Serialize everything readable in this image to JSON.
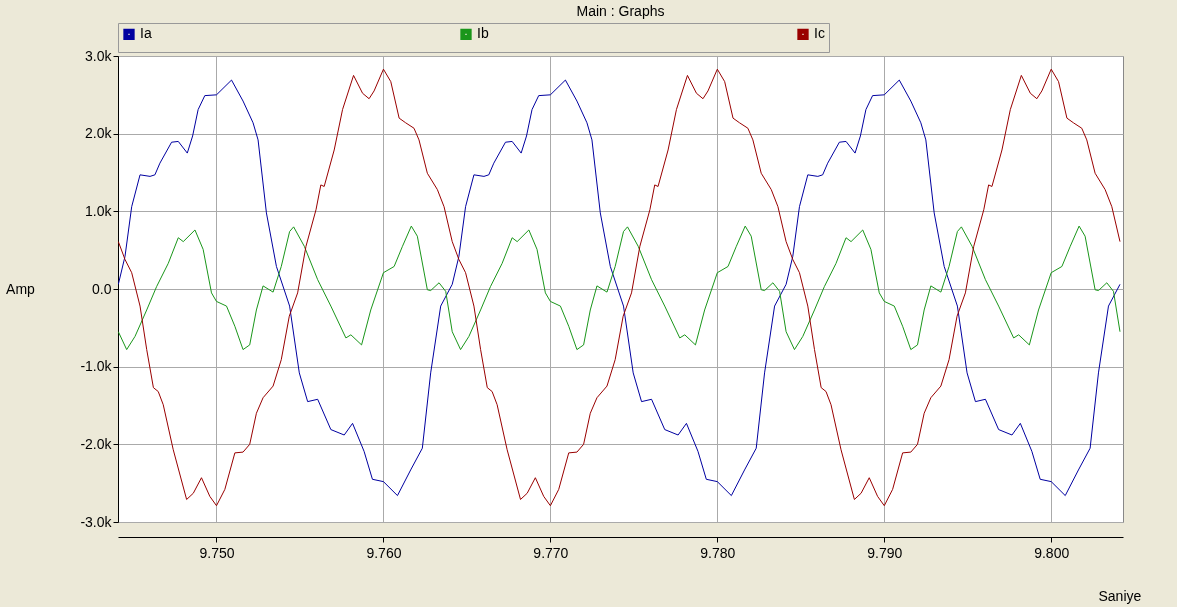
{
  "chart_data": {
    "type": "line",
    "title": "Main : Graphs",
    "xlabel": "Saniye",
    "ylabel": "Amp",
    "legend": "top",
    "grid": true,
    "xlim": [
      9.7441,
      9.8043
    ],
    "xticks": [
      {
        "value": 9.75,
        "label": "9.750"
      },
      {
        "value": 9.76,
        "label": "9.760"
      },
      {
        "value": 9.77,
        "label": "9.770"
      },
      {
        "value": 9.78,
        "label": "9.780"
      },
      {
        "value": 9.79,
        "label": "9.790"
      },
      {
        "value": 9.8,
        "label": "9.800"
      }
    ],
    "ylim": [
      -3000,
      3000
    ],
    "yticks": [
      {
        "value": -3000,
        "label": "-3.0k"
      },
      {
        "value": -2000,
        "label": "-2.0k"
      },
      {
        "value": -1000,
        "label": "-1.0k"
      },
      {
        "value": 0,
        "label": "0.0"
      },
      {
        "value": 1000,
        "label": "1.0k"
      },
      {
        "value": 2000,
        "label": "2.0k"
      },
      {
        "value": 3000,
        "label": "3.0k"
      }
    ],
    "series": [
      {
        "name": "Ia",
        "color": "#0000a0",
        "x": [
          9.74412,
          9.74452,
          9.74492,
          9.74542,
          9.74602,
          9.74631,
          9.74661,
          9.74731,
          9.74771,
          9.74825,
          9.74857,
          9.7489,
          9.7493,
          9.75,
          9.7509,
          9.75159,
          9.75219,
          9.75249,
          9.75299,
          9.75359,
          9.75438,
          9.75496,
          9.75546,
          9.75606,
          9.75685,
          9.75765,
          9.75815,
          9.75884,
          9.75934,
          9.76,
          9.76084,
          9.76163,
          9.76233,
          9.76283,
          9.76343,
          9.76412,
          9.76452,
          9.76492,
          9.76542,
          9.76602,
          9.76631,
          9.76661,
          9.76731,
          9.76771,
          9.76825,
          9.76857,
          9.7689,
          9.7693,
          9.77,
          9.7709,
          9.77159,
          9.77219,
          9.77249,
          9.77299,
          9.77359,
          9.77438,
          9.77496,
          9.77546,
          9.77606,
          9.77685,
          9.77765,
          9.77815,
          9.77884,
          9.77934,
          9.78,
          9.78084,
          9.78163,
          9.78233,
          9.78283,
          9.78343,
          9.78412,
          9.78452,
          9.78492,
          9.78542,
          9.78602,
          9.78631,
          9.78661,
          9.78731,
          9.78771,
          9.78825,
          9.78857,
          9.7889,
          9.7893,
          9.79,
          9.7909,
          9.79159,
          9.79219,
          9.79249,
          9.79299,
          9.79359,
          9.79438,
          9.79496,
          9.79546,
          9.79606,
          9.79685,
          9.79765,
          9.79815,
          9.79884,
          9.79934,
          9.8,
          9.80084,
          9.80163,
          9.80233,
          9.80283,
          9.80343,
          9.80412
        ],
        "values": [
          60,
          420,
          1060,
          1470,
          1450,
          1470,
          1620,
          1890,
          1900,
          1750,
          1970,
          2310,
          2490,
          2500,
          2690,
          2420,
          2140,
          1920,
          980,
          290,
          -220,
          -1080,
          -1450,
          -1420,
          -1810,
          -1880,
          -1730,
          -2090,
          -2450,
          -2480,
          -2660,
          -2330,
          -2050,
          -1080,
          -220,
          60,
          420,
          1060,
          1470,
          1450,
          1470,
          1620,
          1890,
          1900,
          1750,
          1970,
          2310,
          2490,
          2500,
          2690,
          2420,
          2140,
          1920,
          980,
          290,
          -220,
          -1080,
          -1450,
          -1420,
          -1810,
          -1880,
          -1730,
          -2090,
          -2450,
          -2480,
          -2660,
          -2330,
          -2050,
          -1080,
          -220,
          60,
          420,
          1060,
          1470,
          1450,
          1470,
          1620,
          1890,
          1900,
          1750,
          1970,
          2310,
          2490,
          2500,
          2690,
          2420,
          2140,
          1920,
          980,
          290,
          -220,
          -1080,
          -1450,
          -1420,
          -1810,
          -1880,
          -1730,
          -2090,
          -2450,
          -2480,
          -2660,
          -2330,
          -2050,
          -1080,
          -220,
          60
        ]
      },
      {
        "name": "Ib",
        "color": "#1a961a",
        "x": [
          9.74412,
          9.74462,
          9.74512,
          9.74582,
          9.74641,
          9.74711,
          9.74771,
          9.74801,
          9.74871,
          9.7492,
          9.7497,
          9.75,
          9.7506,
          9.7511,
          9.75159,
          9.75199,
          9.75239,
          9.75279,
          9.75339,
          9.75388,
          9.75438,
          9.75462,
          9.75526,
          9.75606,
          9.75685,
          9.75775,
          9.75805,
          9.75869,
          9.75924,
          9.76,
          9.76064,
          9.76114,
          9.76167,
          9.76203,
          9.76263,
          9.76283,
          9.76333,
          9.76373,
          9.76412,
          9.76462,
          9.76512,
          9.76582,
          9.76641,
          9.76711,
          9.76771,
          9.76801,
          9.76871,
          9.7692,
          9.7697,
          9.77,
          9.7706,
          9.7711,
          9.77159,
          9.77199,
          9.77239,
          9.77279,
          9.77339,
          9.77388,
          9.77438,
          9.77462,
          9.77526,
          9.77606,
          9.77685,
          9.77775,
          9.77805,
          9.77869,
          9.77924,
          9.78,
          9.78064,
          9.78114,
          9.78167,
          9.78203,
          9.78263,
          9.78283,
          9.78333,
          9.78373,
          9.78412,
          9.78462,
          9.78512,
          9.78582,
          9.78641,
          9.78711,
          9.78771,
          9.78801,
          9.78871,
          9.7892,
          9.7897,
          9.79,
          9.7906,
          9.7911,
          9.79159,
          9.79199,
          9.79239,
          9.79279,
          9.79339,
          9.79388,
          9.79438,
          9.79462,
          9.79526,
          9.79606,
          9.79685,
          9.79775,
          9.79805,
          9.79869,
          9.79924,
          9.8,
          9.80064,
          9.80114,
          9.80167,
          9.80203,
          9.80263,
          9.80283,
          9.80333,
          9.80373,
          9.80412
        ],
        "values": [
          -550,
          -780,
          -610,
          -270,
          30,
          330,
          660,
          610,
          760,
          510,
          -50,
          -160,
          -220,
          -480,
          -780,
          -720,
          -270,
          40,
          -40,
          290,
          740,
          800,
          550,
          120,
          -220,
          -630,
          -590,
          -720,
          -270,
          210,
          290,
          550,
          810,
          680,
          -10,
          -20,
          80,
          -30,
          -550,
          -780,
          -610,
          -270,
          30,
          330,
          660,
          610,
          760,
          510,
          -50,
          -160,
          -220,
          -480,
          -780,
          -720,
          -270,
          40,
          -40,
          290,
          740,
          800,
          550,
          120,
          -220,
          -630,
          -590,
          -720,
          -270,
          210,
          290,
          550,
          810,
          680,
          -10,
          -20,
          80,
          -30,
          -550,
          -780,
          -610,
          -270,
          30,
          330,
          660,
          610,
          760,
          510,
          -50,
          -160,
          -220,
          -480,
          -780,
          -720,
          -270,
          40,
          -40,
          290,
          740,
          800,
          550,
          120,
          -220,
          -630,
          -590,
          -720,
          -270,
          210,
          290,
          550,
          810,
          680,
          -10,
          -20,
          80,
          -30,
          -550
        ]
      },
      {
        "name": "Ic",
        "color": "#990000",
        "x": [
          9.74412,
          9.74452,
          9.74492,
          9.74542,
          9.74582,
          9.74622,
          9.74651,
          9.74681,
          9.74741,
          9.74821,
          9.74861,
          9.7491,
          9.7496,
          9.75,
          9.7505,
          9.7511,
          9.75159,
          9.75199,
          9.75239,
          9.75279,
          9.75339,
          9.75388,
          9.75436,
          9.75486,
          9.75536,
          9.75596,
          9.75625,
          9.75645,
          9.75705,
          9.75755,
          9.75821,
          9.75875,
          9.75914,
          9.75944,
          9.76,
          9.76044,
          9.76094,
          9.76133,
          9.76183,
          9.76213,
          9.76263,
          9.76323,
          9.76363,
          9.76412,
          9.76452,
          9.76492,
          9.76542,
          9.76582,
          9.76622,
          9.76651,
          9.76681,
          9.76741,
          9.76821,
          9.76861,
          9.7691,
          9.7696,
          9.77,
          9.7705,
          9.7711,
          9.77159,
          9.77199,
          9.77239,
          9.77279,
          9.77339,
          9.77388,
          9.77436,
          9.77486,
          9.77536,
          9.77596,
          9.77625,
          9.77645,
          9.77705,
          9.77755,
          9.77821,
          9.77875,
          9.77914,
          9.77944,
          9.78,
          9.78044,
          9.78094,
          9.78133,
          9.78183,
          9.78213,
          9.78263,
          9.78323,
          9.78363,
          9.78412,
          9.78452,
          9.78492,
          9.78542,
          9.78582,
          9.78622,
          9.78651,
          9.78681,
          9.78741,
          9.78821,
          9.78861,
          9.7891,
          9.7896,
          9.79,
          9.7905,
          9.7911,
          9.79159,
          9.79199,
          9.79239,
          9.79279,
          9.79339,
          9.79388,
          9.79436,
          9.79486,
          9.79536,
          9.79596,
          9.79625,
          9.79645,
          9.79705,
          9.79755,
          9.79821,
          9.79875,
          9.79914,
          9.79944,
          9.8,
          9.80044,
          9.80094,
          9.80133,
          9.80183,
          9.80213,
          9.80263,
          9.80323,
          9.80363,
          9.80412
        ],
        "values": [
          610,
          380,
          210,
          -220,
          -780,
          -1270,
          -1320,
          -1490,
          -2070,
          -2710,
          -2630,
          -2430,
          -2670,
          -2790,
          -2580,
          -2110,
          -2100,
          -2000,
          -1600,
          -1400,
          -1250,
          -910,
          -350,
          -50,
          550,
          1020,
          1340,
          1320,
          1790,
          2310,
          2750,
          2520,
          2450,
          2550,
          2830,
          2670,
          2200,
          2140,
          2070,
          1920,
          1490,
          1280,
          1060,
          610,
          380,
          210,
          -220,
          -780,
          -1270,
          -1320,
          -1490,
          -2070,
          -2710,
          -2630,
          -2430,
          -2670,
          -2790,
          -2580,
          -2110,
          -2100,
          -2000,
          -1600,
          -1400,
          -1250,
          -910,
          -350,
          -50,
          550,
          1020,
          1340,
          1320,
          1790,
          2310,
          2750,
          2520,
          2450,
          2550,
          2830,
          2670,
          2200,
          2140,
          2070,
          1920,
          1490,
          1280,
          1060,
          610,
          380,
          210,
          -220,
          -780,
          -1270,
          -1320,
          -1490,
          -2070,
          -2710,
          -2630,
          -2430,
          -2670,
          -2790,
          -2580,
          -2110,
          -2100,
          -2000,
          -1600,
          -1400,
          -1250,
          -910,
          -350,
          -50,
          550,
          1020,
          1340,
          1320,
          1790,
          2310,
          2750,
          2520,
          2450,
          2550,
          2830,
          2670,
          2200,
          2140,
          2070,
          1920,
          1490,
          1280,
          1060,
          610
        ]
      }
    ]
  }
}
